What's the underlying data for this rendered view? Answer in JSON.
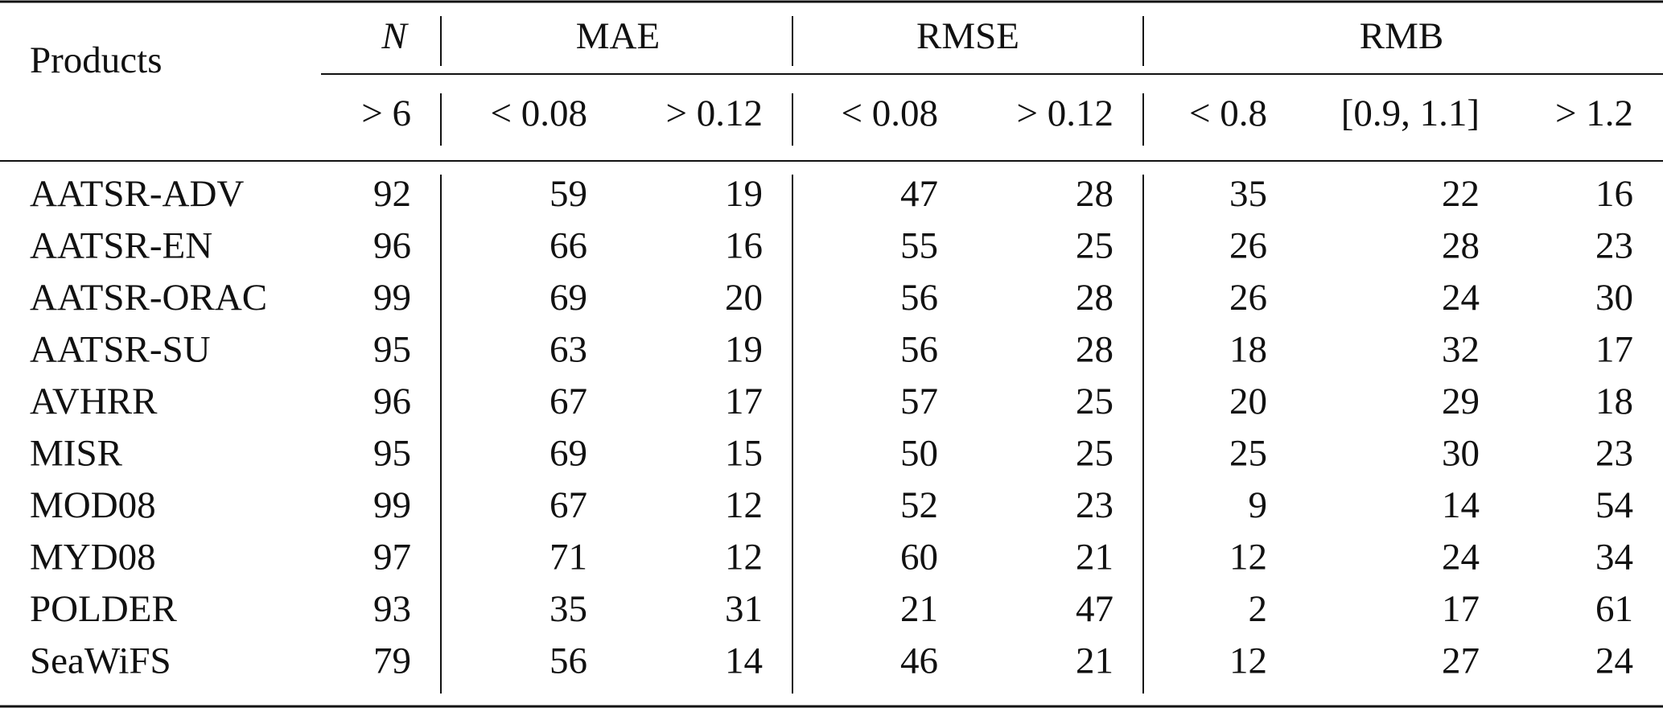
{
  "table": {
    "header": {
      "products": "Products",
      "groups": [
        "N",
        "MAE",
        "RMSE",
        "RMB"
      ],
      "subheaders": [
        "> 6",
        "< 0.08",
        "> 0.12",
        "< 0.08",
        "> 0.12",
        "< 0.8",
        "[0.9, 1.1]",
        "> 1.2"
      ]
    },
    "rows": [
      [
        "AATSR-ADV",
        92,
        59,
        19,
        47,
        28,
        35,
        22,
        16
      ],
      [
        "AATSR-EN",
        96,
        66,
        16,
        55,
        25,
        26,
        28,
        23
      ],
      [
        "AATSR-ORAC",
        99,
        69,
        20,
        56,
        28,
        26,
        24,
        30
      ],
      [
        "AATSR-SU",
        95,
        63,
        19,
        56,
        28,
        18,
        32,
        17
      ],
      [
        "AVHRR",
        96,
        67,
        17,
        57,
        25,
        20,
        29,
        18
      ],
      [
        "MISR",
        95,
        69,
        15,
        50,
        25,
        25,
        30,
        23
      ],
      [
        "MOD08",
        99,
        67,
        12,
        52,
        23,
        9,
        14,
        54
      ],
      [
        "MYD08",
        97,
        71,
        12,
        60,
        21,
        12,
        24,
        34
      ],
      [
        "POLDER",
        93,
        35,
        31,
        21,
        47,
        2,
        17,
        61
      ],
      [
        "SeaWiFS",
        79,
        56,
        14,
        46,
        21,
        12,
        27,
        24
      ]
    ]
  }
}
